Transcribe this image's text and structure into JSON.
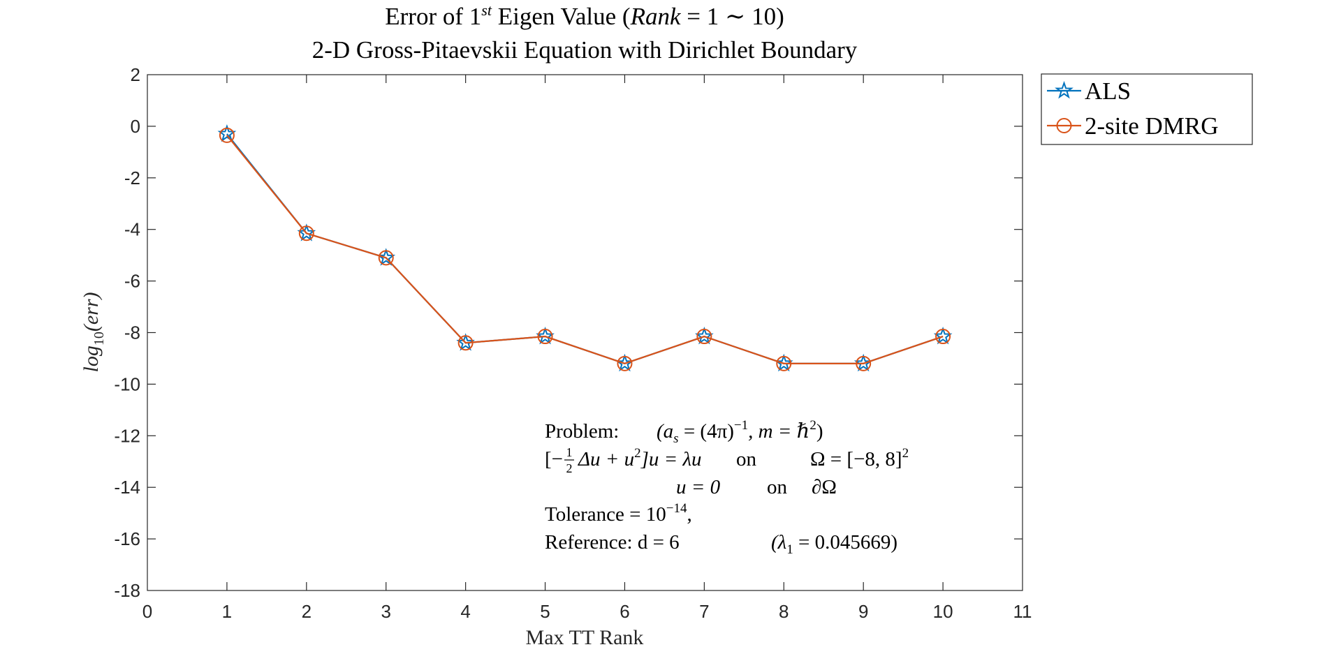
{
  "chart_data": {
    "type": "line",
    "title": {
      "prefix": "Error of 1",
      "sup": "st",
      "mid": " Eigen Value (",
      "rank_var": "Rank",
      "suffix": " = 1 ∼ 10)"
    },
    "subtitle": "2-D Gross-Pitaevskii Equation with Dirichlet Boundary",
    "xlabel": "Max TT Rank",
    "ylabel": {
      "base": "log",
      "sub": "10",
      "arg": "(err)"
    },
    "xlim": [
      0,
      11
    ],
    "ylim": [
      -18,
      2
    ],
    "xticks": [
      "0",
      "1",
      "2",
      "3",
      "4",
      "5",
      "6",
      "7",
      "8",
      "9",
      "10",
      "11"
    ],
    "yticks": [
      "2",
      "0",
      "-2",
      "-4",
      "-6",
      "-8",
      "-10",
      "-12",
      "-14",
      "-16",
      "-18"
    ],
    "legend_position": "outside-top-right",
    "x": [
      1,
      2,
      3,
      4,
      5,
      6,
      7,
      8,
      9,
      10
    ],
    "series": [
      {
        "name": "ALS",
        "marker": "star",
        "color": "#0072BD",
        "values": [
          -0.3,
          -4.15,
          -5.1,
          -8.4,
          -8.15,
          -9.2,
          -8.15,
          -9.2,
          -9.2,
          -8.15
        ]
      },
      {
        "name": "2-site DMRG",
        "marker": "circle",
        "color": "#D95319",
        "values": [
          -0.35,
          -4.15,
          -5.1,
          -8.4,
          -8.15,
          -9.2,
          -8.15,
          -9.2,
          -9.2,
          -8.15
        ]
      }
    ],
    "annotation": {
      "line1": {
        "label": "Problem:",
        "expr_a": "(a",
        "expr_a_sub": "s",
        "expr_b": " = (4π)",
        "expr_b_sup": "−1",
        "expr_c": ",  m = ℏ",
        "expr_c_sup": "2",
        "expr_d": ")"
      },
      "line2": {
        "lead": "[−",
        "frac_num": "1",
        "frac_den": "2",
        "mid": "Δu + u",
        "mid_sup": "2",
        "rest": "]u = λu",
        "on": "on",
        "domain": "Ω = [−8, 8]",
        "domain_sup": "2"
      },
      "line3": {
        "eq": "u = 0",
        "on": "on",
        "boundary": "∂Ω"
      },
      "line4": {
        "text": "Tolerance = 10",
        "sup": "−14",
        "tail": ","
      },
      "line5": {
        "text": "Reference: d = 6",
        "paren_open": "(λ",
        "sub": "1",
        "paren_rest": " = 0.045669)"
      }
    }
  }
}
